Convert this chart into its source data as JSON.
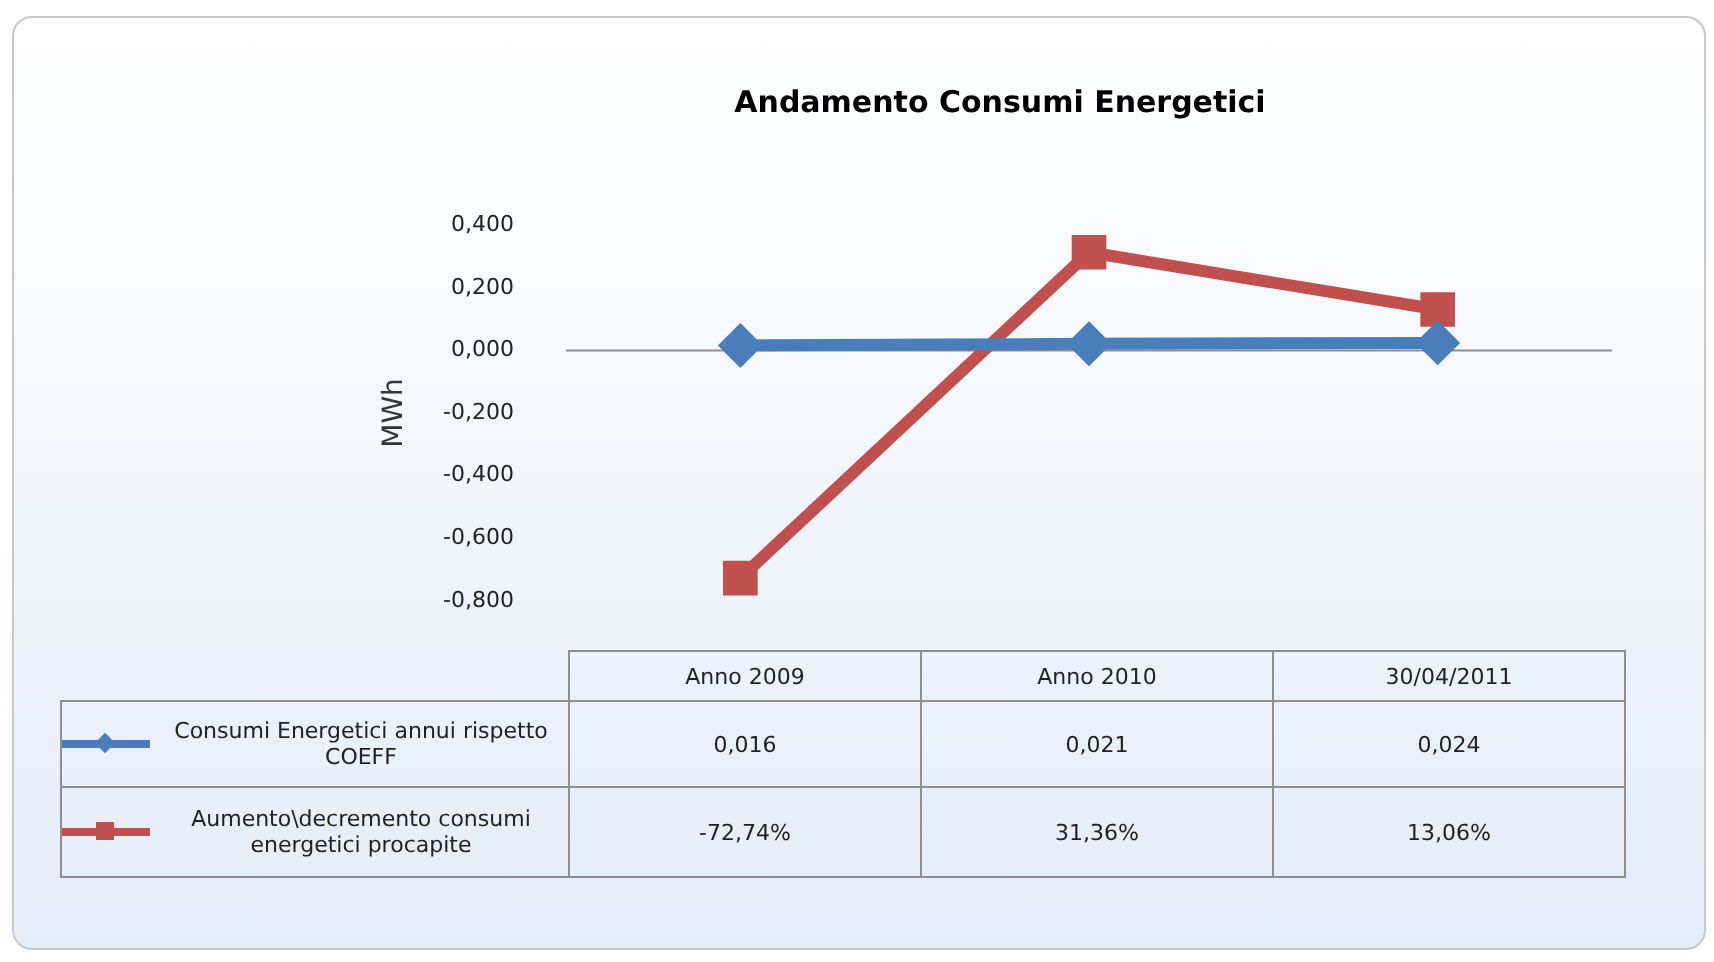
{
  "chart_data": {
    "type": "line",
    "title": "Andamento Consumi Energetici",
    "ylabel": "MWh",
    "categories": [
      "Anno 2009",
      "Anno 2010",
      "30/04/2011"
    ],
    "series": [
      {
        "name": "Consumi Energetici annui rispetto COEFF",
        "color": "#4a7ebb",
        "values": [
          0.016,
          0.021,
          0.024
        ],
        "value_labels": [
          "0,016",
          "0,021",
          "0,024"
        ],
        "marker": "diamond"
      },
      {
        "name": "Aumento\\decremento consumi energetici procapite",
        "color": "#c0504d",
        "values": [
          -0.7274,
          0.3136,
          0.1306
        ],
        "value_labels": [
          "-72,74%",
          "31,36%",
          "13,06%"
        ],
        "marker": "square"
      }
    ],
    "ylim": [
      -0.8,
      0.4
    ],
    "yticks": [
      {
        "value": 0.4,
        "label": "0,400"
      },
      {
        "value": 0.2,
        "label": "0,200"
      },
      {
        "value": 0,
        "label": "0,000"
      },
      {
        "value": -0.2,
        "label": "-0,200"
      },
      {
        "value": -0.4,
        "label": "-0,400"
      },
      {
        "value": -0.6,
        "label": "-0,600"
      },
      {
        "value": -0.8,
        "label": "-0,800"
      }
    ],
    "ref_lines": [
      {
        "axis": "y",
        "value": 0,
        "color": "#8e8e8e"
      }
    ],
    "grid": false,
    "legend": "bottom"
  }
}
